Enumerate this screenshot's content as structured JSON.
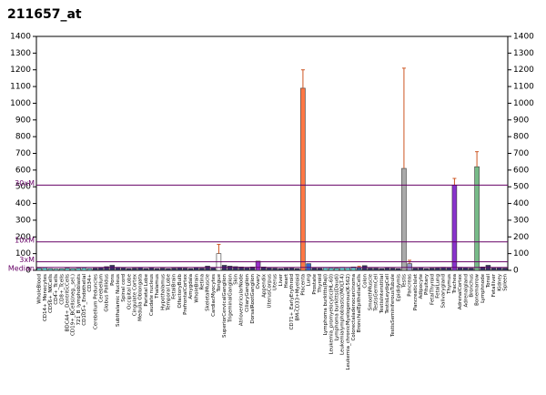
{
  "chart_data": {
    "type": "bar",
    "title": "211657_at",
    "categories": [
      "WholeBlood",
      "CD14+_Monocytes",
      "CD56+_NKCells",
      "CD4+_Tcells",
      "CD8+_Tcells",
      "BDCA4+_DentriticCells",
      "CD19+_BCells(neg._sel.)",
      "721_B_lymphoblasts",
      "CD105+_Endothelial",
      "CD34+",
      "Cerebellum Peduncles",
      "Cerebellum",
      "Globus Pallidus",
      "Pons",
      "Subthalamic Nucleus",
      "Spinal cord",
      "Occipital Lobe",
      "Cingulate Cortex",
      "Medulla Oblongata",
      "Parietal Lobe",
      "Caudate nucleus",
      "Thalamus",
      "Hypothalamus",
      "Temporal Lobe",
      "FetalBrain",
      "OlfactoryBulb",
      "PrefrontalCortex",
      "Amygdala",
      "WholeBrain",
      "Retina",
      "SkeletalMuscle",
      "CardiacMyocytes",
      "Tongue",
      "SuperiorCervicalGanglion",
      "TrigeminalGanglion",
      "Skin",
      "AtrioventricularNode",
      "CiliaryGanglion",
      "DorsalRootGanglion",
      "Ovary",
      "Appendix",
      "UterusCorpus",
      "Uterus",
      "Liver",
      "Heart",
      "CD71+_EarlyErythroid",
      "BM-CD33+Myeloid",
      "Placenta",
      "Lung",
      "Prostate",
      "Thyroid",
      "Lymphoma burkitts(Raji)",
      "Leukemia_promyelocytic(HL-60)",
      "Lymphoma burkitts(Daudi)",
      "Leukemialymphoblastic(MOLT-4)",
      "Leukemia_chronicMyelogenous(K-562)",
      "Colorectaladenocarcinoma",
      "BronchialEpithelialCells",
      "Colon",
      "SmoothMuscle",
      "TestisGermCell",
      "TestisInterstitial",
      "TestisLeydigCell",
      "TestisSeminiferousTubule",
      "Epididymis",
      "Testis",
      "Pancreas",
      "PancreaticIslet",
      "Adipocyte",
      "Pituitary",
      "FetalThyroid",
      "FetalLung",
      "Salivarygland",
      "Thymus",
      "Trachea",
      "AdrenalCortex",
      "Adrenalgland",
      "Bronchus",
      "Bonemarrow",
      "Lymphnode",
      "Tonsil",
      "Fetalliver",
      "Kidney",
      "Spleen"
    ],
    "values": [
      12,
      15,
      10,
      8,
      9,
      12,
      10,
      12,
      14,
      10,
      12,
      15,
      22,
      30,
      18,
      14,
      10,
      12,
      16,
      10,
      14,
      10,
      12,
      10,
      12,
      14,
      12,
      10,
      16,
      12,
      25,
      14,
      100,
      30,
      25,
      22,
      20,
      18,
      20,
      55,
      20,
      14,
      12,
      10,
      12,
      14,
      10,
      1090,
      40,
      14,
      12,
      16,
      14,
      12,
      18,
      16,
      20,
      14,
      28,
      12,
      12,
      10,
      14,
      12,
      10,
      610,
      40,
      12,
      14,
      10,
      12,
      14,
      18,
      16,
      510,
      18,
      16,
      12,
      620,
      20,
      30,
      14,
      16,
      12
    ],
    "errors": [
      null,
      null,
      null,
      null,
      null,
      null,
      null,
      null,
      null,
      null,
      null,
      null,
      null,
      null,
      null,
      null,
      null,
      null,
      null,
      null,
      null,
      null,
      null,
      null,
      null,
      null,
      null,
      null,
      null,
      null,
      null,
      null,
      55,
      null,
      null,
      null,
      null,
      null,
      null,
      null,
      null,
      null,
      null,
      null,
      null,
      null,
      null,
      110,
      null,
      null,
      null,
      null,
      null,
      null,
      null,
      null,
      null,
      10,
      null,
      null,
      null,
      null,
      null,
      null,
      null,
      600,
      20,
      null,
      null,
      null,
      null,
      null,
      null,
      null,
      40,
      null,
      null,
      null,
      90,
      null,
      null,
      null,
      null,
      null
    ],
    "colors": [
      "#66cccc",
      "#66cccc",
      "#66cccc",
      "#66cccc",
      "#66cccc",
      "#66cccc",
      "#66cccc",
      "#66cccc",
      "#66cccc",
      "#66cccc",
      "#333366",
      "#333366",
      "#333366",
      "#333366",
      "#333366",
      "#333366",
      "#333366",
      "#333366",
      "#333366",
      "#333366",
      "#333366",
      "#333366",
      "#333366",
      "#333366",
      "#333366",
      "#333366",
      "#333366",
      "#333366",
      "#333366",
      "#333366",
      "#333366",
      "#333366",
      "#ffffff",
      "#333366",
      "#333366",
      "#333366",
      "#333366",
      "#333366",
      "#333366",
      "#9933cc",
      "#333366",
      "#333366",
      "#333366",
      "#333366",
      "#333366",
      "#333366",
      "#333366",
      "#ff7744",
      "#3366cc",
      "#333366",
      "#333366",
      "#66cccc",
      "#66cccc",
      "#66cccc",
      "#66cccc",
      "#66cccc",
      "#66cccc",
      "#336699",
      "#333366",
      "#333366",
      "#333366",
      "#333366",
      "#333366",
      "#333366",
      "#333366",
      "#aaaaaa",
      "#9999cc",
      "#333366",
      "#333366",
      "#333366",
      "#333366",
      "#333366",
      "#333366",
      "#333366",
      "#8833cc",
      "#333366",
      "#333366",
      "#333366",
      "#77bb88",
      "#333366",
      "#333366",
      "#333366",
      "#333366",
      "#333366"
    ],
    "error_color": "#cc5522",
    "reference_lines": [
      {
        "label": "Median",
        "value": 17
      },
      {
        "label": "3xM",
        "value": 51
      },
      {
        "label": "10xM",
        "value": 170
      },
      {
        "label": "30xM",
        "value": 510
      }
    ],
    "reference_color": "#660066",
    "ylim": [
      0,
      1400
    ],
    "yticks": [
      0,
      100,
      200,
      300,
      400,
      500,
      600,
      700,
      800,
      900,
      1000,
      1100,
      1200,
      1300,
      1400
    ]
  }
}
